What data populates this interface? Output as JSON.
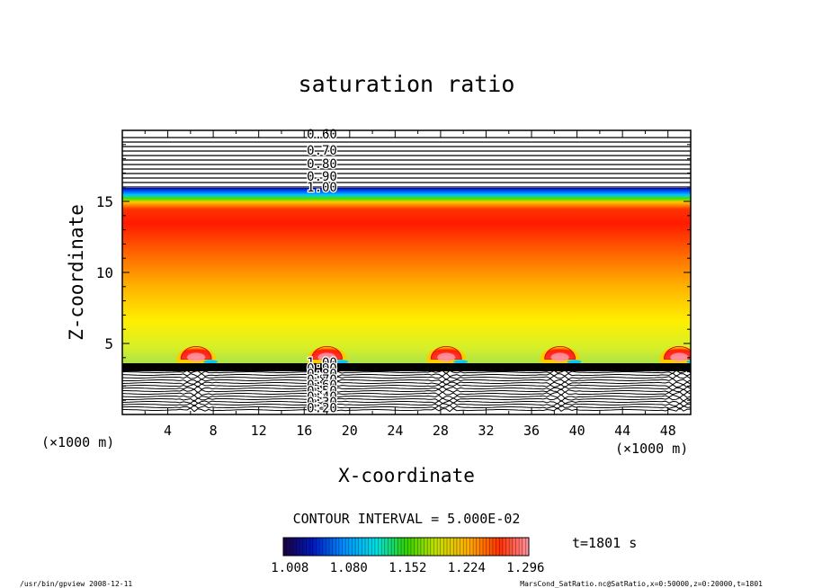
{
  "chart_data": {
    "type": "heatmap",
    "title": "saturation ratio",
    "xlabel": "X-coordinate",
    "ylabel": "Z-coordinate",
    "x_unit": "(×1000 m)",
    "y_unit": "(×1000 m)",
    "xlim": [
      0,
      50
    ],
    "ylim": [
      0,
      20
    ],
    "x_ticks": [
      4,
      8,
      12,
      16,
      20,
      24,
      28,
      32,
      36,
      40,
      44,
      48
    ],
    "y_ticks": [
      5,
      10,
      15
    ],
    "contour_interval_label": "CONTOUR INTERVAL = 5.000E-02",
    "time_label": "t=1801 s",
    "colorbar": {
      "range": [
        1.0,
        1.3
      ],
      "tick_values": [
        "1.008",
        "1.080",
        "1.152",
        "1.224",
        "1.296"
      ]
    },
    "upper_contour_labels": [
      "0.60",
      "0.70",
      "0.80",
      "0.90",
      "1.00"
    ],
    "lower_contour_labels": [
      "1.00",
      "0.90",
      "0.80",
      "0.70",
      "0.60",
      "0.50",
      "0.40",
      "0.30",
      "0.20"
    ],
    "cloud_centers_x": [
      6.5,
      18,
      28.5,
      38.5,
      49
    ],
    "footer_left": "/usr/bin/gpview   2008-12-11",
    "footer_right": "MarsCond_SatRatio.nc@SatRatio,x=0:50000,z=0:20000,t=1801"
  }
}
